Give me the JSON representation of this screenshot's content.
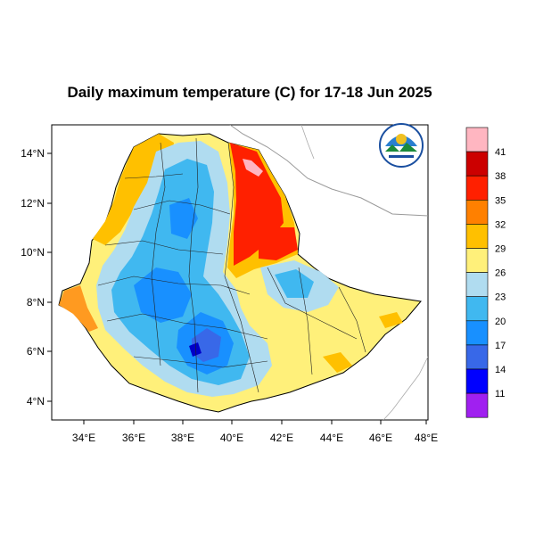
{
  "map": {
    "title": "Daily maximum temperature (C) for 17-18 Jun 2025",
    "lon_ticks": [
      "34°E",
      "36°E",
      "38°E",
      "40°E",
      "42°E",
      "44°E",
      "46°E",
      "48°E"
    ],
    "lat_ticks": [
      "14°N",
      "12°N",
      "10°N",
      "8°N",
      "6°N",
      "4°N"
    ],
    "extent": {
      "lon": [
        33,
        48.2
      ],
      "lat": [
        3.2,
        15
      ]
    }
  },
  "colorbar": {
    "labels": [
      "41",
      "38",
      "35",
      "32",
      "29",
      "26",
      "23",
      "20",
      "17",
      "14",
      "11"
    ],
    "colors": [
      "#ffb6c1",
      "#cc0000",
      "#ff2000",
      "#ff8000",
      "#ffc000",
      "#fff07a",
      "#b0dcf0",
      "#40b8f0",
      "#1890ff",
      "#3868e8",
      "#0000ff",
      "#a020f0"
    ]
  },
  "logo": {
    "icon": "ethiopian-meteorology-institute-logo"
  }
}
